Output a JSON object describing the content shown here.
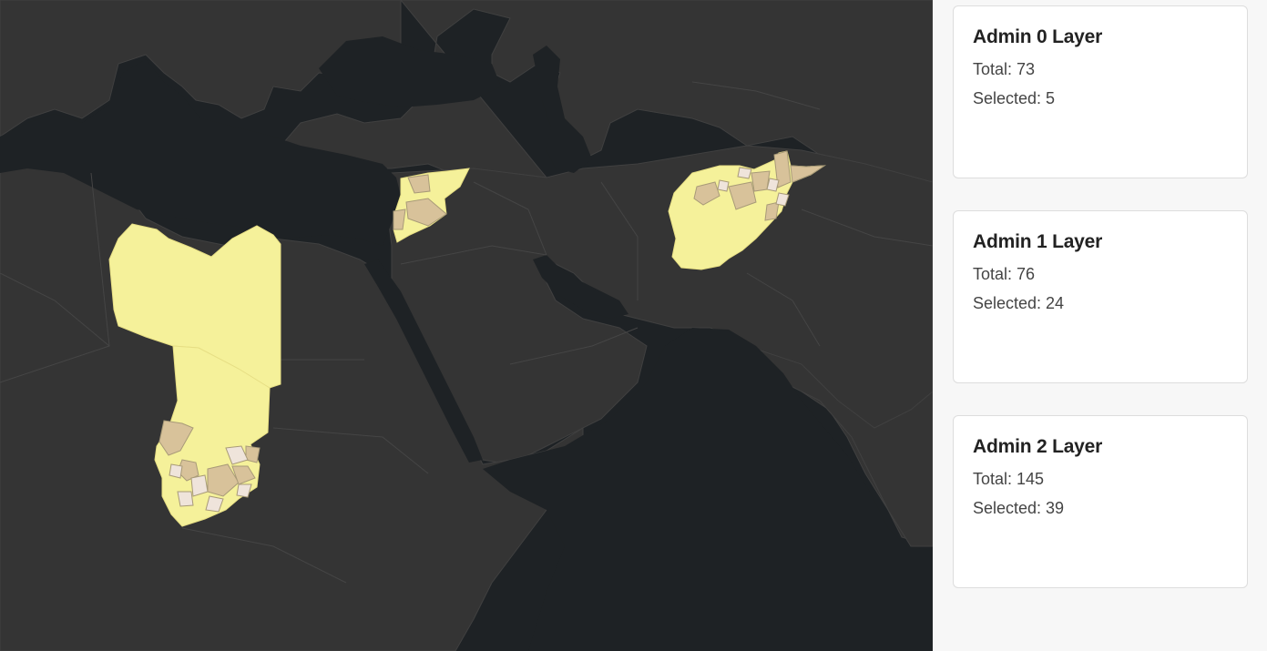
{
  "map": {
    "colors": {
      "water": "#1e2225",
      "land": "#343434",
      "borders": "#444444",
      "admin0_fill": "#f5f19a",
      "admin1_fill": "#d8c29a",
      "admin2_fill": "#efe4db"
    },
    "selected_regions": [
      "libya",
      "chad",
      "syria",
      "afghanistan"
    ]
  },
  "layers": [
    {
      "title": "Admin 0 Layer",
      "total": "Total: 73",
      "selected": "Selected: 5"
    },
    {
      "title": "Admin 1 Layer",
      "total": "Total: 76",
      "selected": "Selected: 24"
    },
    {
      "title": "Admin 2 Layer",
      "total": "Total: 145",
      "selected": "Selected: 39"
    }
  ]
}
